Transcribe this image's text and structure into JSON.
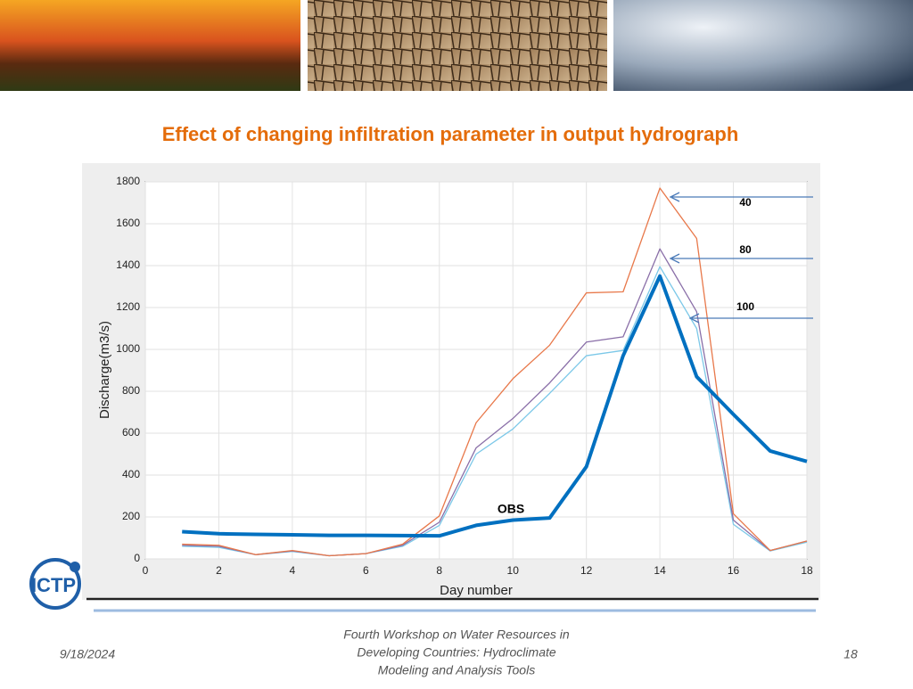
{
  "slide_title": "Effect of changing infiltration parameter in output hydrograph",
  "logo": "ICTP",
  "footer": {
    "date": "9/18/2024",
    "center": [
      "Fourth Workshop on Water Resources in",
      "Developing Countries: Hydroclimate",
      "Modeling and Analysis Tools"
    ],
    "page": "18"
  },
  "chart_data": {
    "type": "line",
    "x_label": "Day number",
    "y_label": "Discharge(m3/s)",
    "x": [
      1,
      2,
      3,
      4,
      5,
      6,
      7,
      8,
      9,
      10,
      11,
      12,
      13,
      14,
      15,
      16,
      17,
      18
    ],
    "xlim": [
      0,
      18
    ],
    "xticks": [
      0,
      2,
      4,
      6,
      8,
      10,
      12,
      14,
      16,
      18
    ],
    "ylim": [
      0,
      1800
    ],
    "yticks": [
      0,
      200,
      400,
      600,
      800,
      1000,
      1200,
      1400,
      1600,
      1800
    ],
    "grid": true,
    "series": [
      {
        "name": "OBS",
        "color": "#0070c0",
        "values": [
          130,
          120,
          117,
          115,
          112,
          112,
          111,
          110,
          160,
          185,
          195,
          440,
          970,
          1350,
          870,
          690,
          515,
          465
        ]
      },
      {
        "name": "40",
        "color": "#e8784a",
        "values": [
          70,
          65,
          20,
          40,
          15,
          25,
          70,
          205,
          650,
          860,
          1020,
          1270,
          1275,
          1770,
          1530,
          215,
          40,
          85
        ]
      },
      {
        "name": "80",
        "color": "#8a6fa8",
        "values": [
          65,
          60,
          20,
          38,
          15,
          25,
          65,
          175,
          530,
          670,
          840,
          1035,
          1060,
          1480,
          1180,
          185,
          40,
          85
        ]
      },
      {
        "name": "100",
        "color": "#7cc8e8",
        "values": [
          60,
          55,
          20,
          35,
          15,
          25,
          60,
          160,
          500,
          620,
          790,
          970,
          995,
          1395,
          1100,
          165,
          38,
          80
        ]
      }
    ]
  }
}
